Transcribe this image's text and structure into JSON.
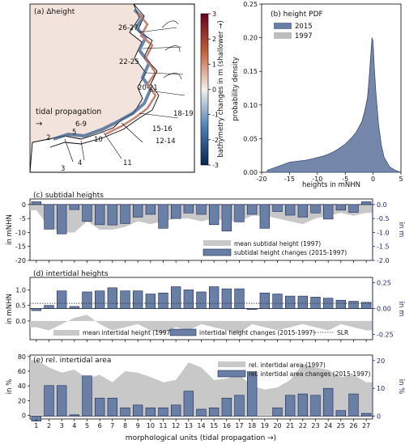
{
  "colors": {
    "bar_fill": "#6a7fa6",
    "bar_edge": "#1c2a55",
    "gray_area": "#c8c8c8",
    "right_axis": "#1f2a6b",
    "map_bg": "#f2e4dc",
    "land": "#ffffff",
    "cmap_pos": "#8b1a1a",
    "cmap_neg": "#0d3b66"
  },
  "map": {
    "title": "(a) Δheight",
    "tidal_label": "tidal propagation",
    "arrow": "→",
    "unit_labels": [
      "26-27",
      "22-25",
      "20-21",
      "18-19",
      "15-16",
      "12-14",
      "11",
      "10",
      "6-9",
      "5",
      "2",
      "3",
      "4"
    ],
    "colorbar": {
      "label": "bathymetry changes in m (shallower →)",
      "ticks": [
        "3",
        "2",
        "1",
        "0",
        "-1",
        "-2",
        "-3"
      ]
    }
  },
  "pdf_panel": {
    "title": "(b) height PDF",
    "legend": [
      "2015",
      "1997"
    ],
    "xlabel": "heights in mNHN",
    "ylabel": "probability density",
    "xticks": [
      "-20",
      "-15",
      "-10",
      "-5",
      "0",
      "5"
    ],
    "yticks": [
      "0.00",
      "0.05",
      "0.10",
      "0.15",
      "0.20",
      "0.25"
    ]
  },
  "chart_data": [
    {
      "type": "area",
      "title": "(b) height PDF",
      "xlabel": "heights in mNHN",
      "ylabel": "probability density",
      "xlim": [
        -20,
        5
      ],
      "ylim": [
        0,
        0.25
      ],
      "series": [
        {
          "name": "2015",
          "x": [
            -19,
            -18,
            -17,
            -16,
            -15,
            -14,
            -13,
            -12,
            -11,
            -10,
            -9,
            -8,
            -7,
            -6,
            -5,
            -4,
            -3,
            -2,
            -1.5,
            -1,
            -0.7,
            -0.4,
            -0.2,
            0,
            0.2,
            0.5,
            1,
            1.5,
            2,
            3,
            4,
            5
          ],
          "y": [
            0.003,
            0.006,
            0.009,
            0.012,
            0.015,
            0.016,
            0.017,
            0.018,
            0.02,
            0.022,
            0.024,
            0.027,
            0.031,
            0.036,
            0.042,
            0.05,
            0.06,
            0.075,
            0.09,
            0.11,
            0.14,
            0.175,
            0.2,
            0.195,
            0.16,
            0.12,
            0.07,
            0.04,
            0.022,
            0.008,
            0.003,
            0.0
          ]
        },
        {
          "name": "1997",
          "x": [
            -19,
            -18,
            -17,
            -16,
            -15,
            -14,
            -13,
            -12,
            -11,
            -10,
            -9,
            -8,
            -7,
            -6,
            -5,
            -4,
            -3,
            -2,
            -1.5,
            -1,
            -0.7,
            -0.4,
            -0.2,
            0,
            0.2,
            0.5,
            1,
            1.5,
            2,
            3,
            4,
            5
          ],
          "y": [
            0.002,
            0.005,
            0.008,
            0.011,
            0.014,
            0.015,
            0.016,
            0.018,
            0.019,
            0.021,
            0.023,
            0.026,
            0.03,
            0.035,
            0.041,
            0.049,
            0.06,
            0.076,
            0.092,
            0.112,
            0.142,
            0.178,
            0.198,
            0.19,
            0.155,
            0.115,
            0.068,
            0.038,
            0.02,
            0.007,
            0.002,
            0.0
          ]
        }
      ]
    },
    {
      "type": "bar",
      "title": "(c) subtidal heights",
      "ylabel": "in mNHN",
      "ylabel_right": "in m",
      "categories": [
        "1",
        "2",
        "3",
        "4",
        "5",
        "6",
        "7",
        "8",
        "9",
        "10",
        "11",
        "12",
        "13",
        "14",
        "15",
        "16",
        "17",
        "18",
        "19",
        "20",
        "21",
        "22",
        "23",
        "24",
        "25",
        "26",
        "27"
      ],
      "ylim": [
        -20,
        2
      ],
      "ylim_right": [
        -2.0,
        0.2
      ],
      "yticks": [
        "0",
        "-5",
        "-10",
        "-15",
        "-20"
      ],
      "yticks_right": [
        "0.0",
        "-0.5",
        "-1.0",
        "-1.5",
        "-2.0"
      ],
      "series": [
        {
          "name": "mean subtidal height (1997)",
          "axis": "left",
          "values": [
            -2,
            -8,
            -10,
            -10,
            -6,
            -9,
            -9,
            -8,
            -6,
            -7,
            -6,
            -5,
            -5,
            -6,
            -5,
            -6,
            -6,
            -4,
            -4,
            -5,
            -6,
            -7,
            -5,
            -4,
            -3,
            -4,
            -3
          ]
        },
        {
          "name": "subtidal height changes (2015-1997)",
          "axis": "right",
          "values": [
            0.1,
            -0.88,
            -1.05,
            -0.18,
            -0.6,
            -0.72,
            -0.73,
            -0.68,
            -0.45,
            -0.35,
            -0.85,
            -0.5,
            -0.3,
            -0.35,
            -0.72,
            -0.95,
            -0.62,
            -0.35,
            -0.85,
            -0.25,
            -0.38,
            -0.45,
            -0.3,
            -0.52,
            -0.2,
            -0.28,
            0.1
          ]
        }
      ]
    },
    {
      "type": "bar",
      "title": "(d) intertidal heights",
      "ylabel": "in mNHN",
      "ylabel_right": "in m",
      "categories": [
        "1",
        "2",
        "3",
        "4",
        "5",
        "6",
        "7",
        "8",
        "9",
        "10",
        "11",
        "12",
        "13",
        "14",
        "15",
        "16",
        "17",
        "18",
        "19",
        "20",
        "21",
        "22",
        "23",
        "24",
        "25",
        "26",
        "27"
      ],
      "ylim": [
        -0.6,
        1.4
      ],
      "ylim_right": [
        -0.3,
        0.3
      ],
      "yticks": [
        "0.0",
        "0.5",
        "1.0"
      ],
      "yticks_right": [
        "-0.25",
        "0.00",
        "0.25"
      ],
      "series": [
        {
          "name": "mean intertidal height (1997)",
          "axis": "left",
          "values": [
            -0.2,
            -0.3,
            -0.1,
            0.1,
            0.2,
            -0.1,
            -0.3,
            -0.2,
            -0.1,
            -0.3,
            -0.4,
            -0.2,
            -0.3,
            -0.1,
            -0.2,
            -0.3,
            -0.4,
            -0.1,
            -0.2,
            -0.3,
            -0.2,
            -0.1,
            -0.2,
            -0.3,
            -0.1,
            -0.2,
            -0.3
          ]
        },
        {
          "name": "intertidal height changes (2015-1997)",
          "axis": "right",
          "values": [
            -0.02,
            0.03,
            0.17,
            0.02,
            0.16,
            0.17,
            0.2,
            0.17,
            0.17,
            0.14,
            0.15,
            0.21,
            0.18,
            0.16,
            0.21,
            0.19,
            0.19,
            -0.01,
            0.15,
            0.14,
            0.12,
            0.12,
            0.11,
            0.1,
            0.08,
            0.07,
            0.06
          ]
        },
        {
          "name": "SLR",
          "axis": "right",
          "style": "dotted",
          "values": [
            0.05,
            0.05,
            0.05,
            0.05,
            0.05,
            0.05,
            0.05,
            0.05,
            0.05,
            0.05,
            0.05,
            0.05,
            0.05,
            0.05,
            0.05,
            0.05,
            0.05,
            0.05,
            0.05,
            0.05,
            0.05,
            0.05,
            0.05,
            0.05,
            0.05,
            0.05,
            0.05
          ]
        }
      ]
    },
    {
      "type": "bar",
      "title": "(e) rel. intertidal area",
      "xlabel": "morphological units (tidal propagation →)",
      "ylabel": "in %",
      "ylabel_right": "in %",
      "categories": [
        "1",
        "2",
        "3",
        "4",
        "5",
        "6",
        "7",
        "8",
        "9",
        "10",
        "11",
        "12",
        "13",
        "14",
        "15",
        "16",
        "17",
        "18",
        "19",
        "20",
        "21",
        "22",
        "23",
        "24",
        "25",
        "26",
        "27"
      ],
      "ylim": [
        -5,
        82
      ],
      "ylim_right": [
        -1,
        22
      ],
      "yticks": [
        "0",
        "20",
        "40",
        "60",
        "80"
      ],
      "yticks_right": [
        "0",
        "10",
        "20"
      ],
      "series": [
        {
          "name": "rel. intertidal area (1997)",
          "axis": "left",
          "values": [
            75,
            65,
            58,
            62,
            50,
            55,
            45,
            60,
            58,
            52,
            45,
            48,
            72,
            65,
            48,
            50,
            55,
            40,
            35,
            38,
            48,
            70,
            65,
            62,
            52,
            55,
            45
          ]
        },
        {
          "name": "rel. intertidal area changes (2015-1997)",
          "axis": "right",
          "values": [
            -1.8,
            11,
            11,
            0.5,
            14.5,
            6.5,
            6.5,
            3,
            4,
            3,
            3,
            4,
            9,
            2.5,
            3,
            6.5,
            7.5,
            16,
            0,
            3,
            7.5,
            8,
            7.5,
            10,
            2,
            8,
            1
          ]
        }
      ]
    }
  ],
  "panels_text": {
    "c_legend": [
      "mean subtidal height (1997)",
      "subtidal height changes (2015-1997)"
    ],
    "d_legend": [
      "mean intertidal height (1997)",
      "intertidal height changes (2015-1997)",
      "SLR"
    ],
    "e_legend": [
      "rel. intertidal area (1997)",
      "rel. intertidal area changes (2015-1997)"
    ]
  }
}
